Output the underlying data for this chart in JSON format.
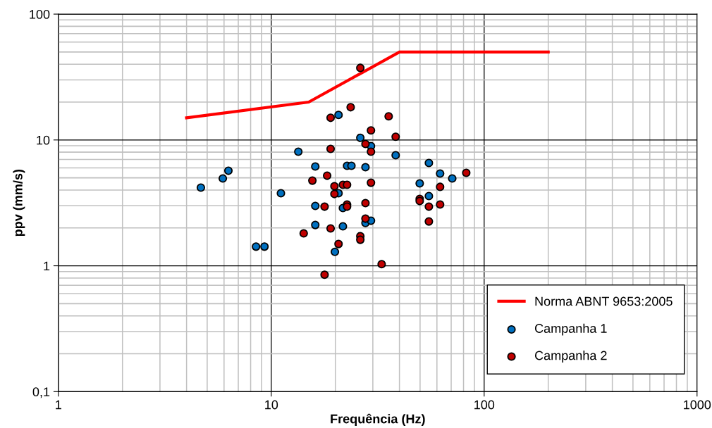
{
  "chart_data": {
    "type": "scatter",
    "xlabel": "Frequência (Hz)",
    "ylabel": "ppv (mm/s)",
    "log": "xy",
    "xlim": [
      1,
      1000
    ],
    "xticks": [
      1,
      10,
      100,
      1000
    ],
    "ylim": [
      0.1,
      100
    ],
    "yticks": [
      {
        "value": 0.1,
        "label": "0,1"
      },
      1,
      10,
      100
    ],
    "grid": true,
    "legend": "bottom right",
    "series": [
      {
        "name": "Norma ABNT 9653:2005",
        "type": "line",
        "marker": "none",
        "color": "#ff0000",
        "x": [
          4,
          15,
          40,
          200
        ],
        "values": [
          15,
          20,
          50,
          50
        ]
      },
      {
        "name": "Campanha 1",
        "marker": "circle",
        "color": "#0070c0",
        "x": [
          4.67,
          5.92,
          6.29,
          8.48,
          9.29,
          11.1,
          13.4,
          16.1,
          16.1,
          16.1,
          20.7,
          19.9,
          20.7,
          21.7,
          21.7,
          22.7,
          23.8,
          26.2,
          27.7,
          29.4,
          27.7,
          29.4,
          38.4,
          49.8,
          55.0,
          62.1,
          55.0,
          70.8
        ],
        "values": [
          4.18,
          4.94,
          5.69,
          1.42,
          1.42,
          3.77,
          8.07,
          6.15,
          2.99,
          2.11,
          15.8,
          1.29,
          3.77,
          2.88,
          2.06,
          6.23,
          6.23,
          10.4,
          6.07,
          8.94,
          2.19,
          2.28,
          7.56,
          4.52,
          6.56,
          5.41,
          3.58,
          4.94
        ]
      },
      {
        "name": "Campanha 2",
        "marker": "circle",
        "color": "#c00000",
        "x": [
          26.2,
          23.6,
          19.0,
          35.6,
          29.4,
          38.4,
          27.7,
          29.4,
          19.0,
          18.3,
          15.6,
          19.8,
          21.7,
          22.7,
          29.4,
          19.8,
          22.7,
          22.7,
          17.8,
          27.7,
          19.0,
          14.2,
          27.7,
          26.2,
          26.2,
          20.7,
          17.8,
          33.0,
          49.8,
          49.8,
          55.0,
          55.0,
          62.1,
          62.1,
          82.4
        ],
        "values": [
          37.4,
          18.2,
          15.0,
          15.4,
          11.9,
          10.6,
          9.29,
          8.07,
          8.49,
          5.2,
          4.75,
          4.29,
          4.4,
          4.4,
          4.57,
          3.72,
          3.07,
          2.95,
          2.95,
          3.15,
          1.98,
          1.81,
          2.37,
          1.72,
          1.61,
          1.49,
          0.85,
          1.03,
          3.4,
          3.27,
          2.95,
          2.25,
          4.24,
          3.07,
          5.48
        ]
      }
    ]
  }
}
